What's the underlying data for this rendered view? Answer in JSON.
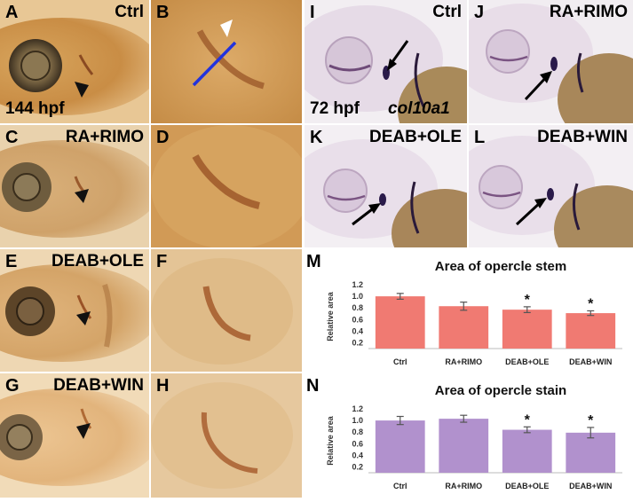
{
  "panels": {
    "A": {
      "label": "A",
      "condition": "Ctrl",
      "stage": "144 hpf"
    },
    "B": {
      "label": "B"
    },
    "C": {
      "label": "C",
      "condition": "RA+RIMO"
    },
    "D": {
      "label": "D"
    },
    "E": {
      "label": "E",
      "condition": "DEAB+OLE"
    },
    "F": {
      "label": "F"
    },
    "G": {
      "label": "G",
      "condition": "DEAB+WIN"
    },
    "H": {
      "label": "H"
    },
    "I": {
      "label": "I",
      "condition": "Ctrl",
      "stage": "72 hpf",
      "gene": "col10a1"
    },
    "J": {
      "label": "J",
      "condition": "RA+RIMO"
    },
    "K": {
      "label": "K",
      "condition": "DEAB+OLE"
    },
    "L": {
      "label": "L",
      "condition": "DEAB+WIN"
    },
    "M": {
      "label": "M"
    },
    "N": {
      "label": "N"
    }
  },
  "colors": {
    "stem_bar": "#f07a72",
    "stain_bar": "#b191cd",
    "tissue_orange": "#d39a52",
    "tissue_purple": "#e4dbe6"
  },
  "chart_data": [
    {
      "type": "bar",
      "title": "Area of opercle stem",
      "ylabel": "Relative area",
      "categories": [
        "Ctrl",
        "RA+RIMO",
        "DEAB+OLE",
        "DEAB+WIN"
      ],
      "values": [
        1.0,
        0.83,
        0.77,
        0.71
      ],
      "errors": [
        0.05,
        0.07,
        0.05,
        0.04
      ],
      "significance": [
        "",
        "",
        "*",
        "*"
      ],
      "yticks": [
        "0.2",
        "0.4",
        "0.6",
        "0.8",
        "1.0",
        "1.2"
      ],
      "ylim": [
        0.1,
        1.2
      ],
      "color": "#f07a72"
    },
    {
      "type": "bar",
      "title": "Area of opercle stain",
      "ylabel": "Relative area",
      "categories": [
        "Ctrl",
        "RA+RIMO",
        "DEAB+OLE",
        "DEAB+WIN"
      ],
      "values": [
        1.0,
        1.03,
        0.84,
        0.79
      ],
      "errors": [
        0.07,
        0.06,
        0.05,
        0.09
      ],
      "significance": [
        "",
        "",
        "*",
        "*"
      ],
      "yticks": [
        "0.2",
        "0.4",
        "0.6",
        "0.8",
        "1.0",
        "1.2"
      ],
      "ylim": [
        0.1,
        1.2
      ],
      "color": "#b191cd"
    }
  ]
}
